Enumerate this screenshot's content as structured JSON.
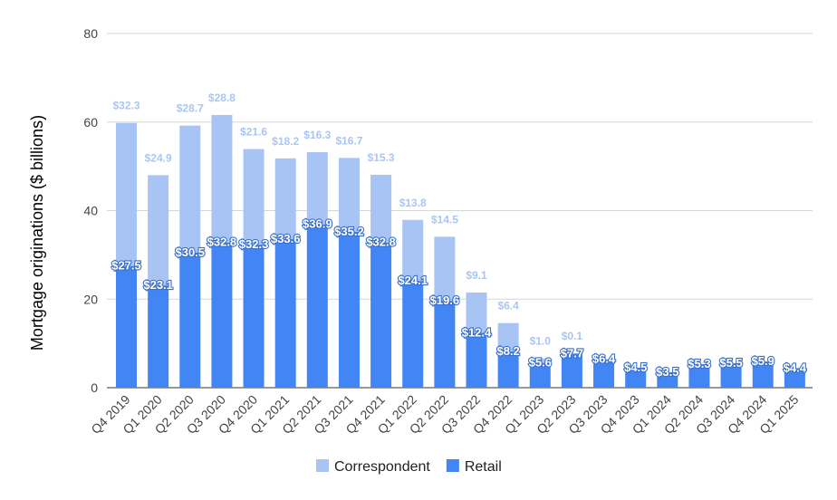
{
  "chart_data": {
    "type": "bar",
    "stacked": true,
    "categories": [
      "Q4 2019",
      "Q1 2020",
      "Q2 2020",
      "Q3 2020",
      "Q4 2020",
      "Q1 2021",
      "Q2 2021",
      "Q3 2021",
      "Q4 2021",
      "Q1 2022",
      "Q2 2022",
      "Q3 2022",
      "Q4 2022",
      "Q1 2023",
      "Q2 2023",
      "Q3 2023",
      "Q4 2023",
      "Q1 2024",
      "Q2 2024",
      "Q3 2024",
      "Q4 2024",
      "Q1 2025"
    ],
    "series": [
      {
        "name": "Retail",
        "color": "#4285f4",
        "values": [
          27.5,
          23.1,
          30.5,
          32.8,
          32.3,
          33.6,
          36.9,
          35.2,
          32.8,
          24.1,
          19.6,
          12.4,
          8.2,
          5.6,
          7.7,
          6.4,
          4.5,
          3.5,
          5.3,
          5.5,
          5.9,
          4.4
        ],
        "labels": [
          "$27.5",
          "$23.1",
          "$30.5",
          "$32.8",
          "$32.3",
          "$33.6",
          "$36.9",
          "$35.2",
          "$32.8",
          "$24.1",
          "$19.6",
          "$12.4",
          "$8.2",
          "$5.6",
          "$7.7",
          "$6.4",
          "$4.5",
          "$3.5",
          "$5.3",
          "$5.5",
          "$5.9",
          "$4.4"
        ]
      },
      {
        "name": "Correspondent",
        "color": "#a8c4f4",
        "values": [
          32.3,
          24.9,
          28.7,
          28.8,
          21.6,
          18.2,
          16.3,
          16.7,
          15.3,
          13.8,
          14.5,
          9.1,
          6.4,
          1.0,
          0.1,
          0,
          0,
          0,
          0,
          0,
          0,
          0
        ],
        "labels": [
          "$32.3",
          "$24.9",
          "$28.7",
          "$28.8",
          "$21.6",
          "$18.2",
          "$16.3",
          "$16.7",
          "$15.3",
          "$13.8",
          "$14.5",
          "$9.1",
          "$6.4",
          "$1.0",
          "$0.1",
          "",
          "",
          "",
          "",
          "",
          "",
          ""
        ]
      }
    ],
    "ylabel": "Mortgage originations ($ billions)",
    "ylim": [
      0,
      80
    ],
    "yticks": [
      0,
      20,
      40,
      60,
      80
    ],
    "grid": true,
    "legend": "bottom",
    "legend_order": [
      "Correspondent",
      "Retail"
    ]
  }
}
